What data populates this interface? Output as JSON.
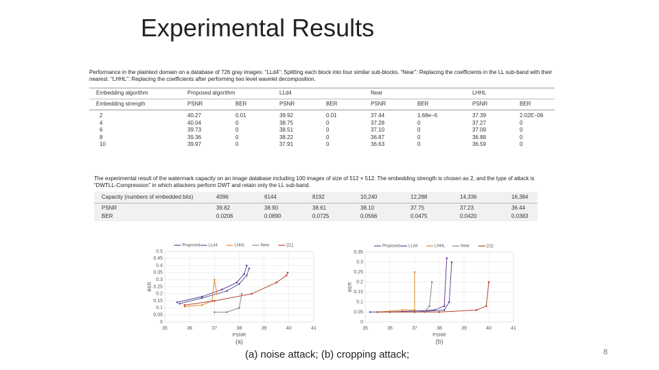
{
  "slide": {
    "title": "Experimental Results"
  },
  "table1": {
    "caption": "Performance in the plaintext domain on a database of 726 gray images: “LLd4”: Splitting each block into four similar sub-blocks. “Near”: Replacing the coefficients in the LL sub-band with their nearest. “LHHL”: Replacing the coefficients after performing two level wavelet decomposition.",
    "header": [
      "Embedding algorithm",
      "Proposed algorithm",
      "LLd4",
      "Near",
      "LHHL"
    ],
    "subheader": [
      "Embedding strength",
      "PSNR",
      "BER",
      "PSNR",
      "BER",
      "PSNR",
      "BER",
      "PSNR",
      "BER"
    ],
    "rows": [
      [
        "2",
        "40.27",
        "0.01",
        "39.92",
        "0.01",
        "37.44",
        "1.68e−6",
        "37.39",
        "2.02E−06"
      ],
      [
        "4",
        "40.04",
        "0",
        "38.75",
        "0",
        "37.28",
        "0",
        "37.27",
        "0"
      ],
      [
        "6",
        "39.73",
        "0",
        "38.51",
        "0",
        "37.10",
        "0",
        "37.09",
        "0"
      ],
      [
        "8",
        "39.36",
        "0",
        "38.22",
        "0",
        "36.87",
        "0",
        "36.88",
        "0"
      ],
      [
        "10",
        "39.97",
        "0",
        "37.91",
        "0",
        "36.63",
        "0",
        "36.59",
        "0"
      ]
    ]
  },
  "table2": {
    "caption": "The experimental result of the watermark capacity on an image database including 100 images of size of 512 × 512. The embedding strength is chosen as 2, and the type of attack is “DWTLL-Compression” in which attackers perform DWT and retain only the LL sub-band.",
    "header": [
      "Capacity (numbers of embedded bits)",
      "4096",
      "6144",
      "8192",
      "10,240",
      "12,288",
      "14,336",
      "16,384"
    ],
    "rows": [
      [
        "PSNR",
        "39.82",
        "38.90",
        "38.61",
        "38.10",
        "37.75",
        "37.23",
        "36.44"
      ],
      [
        "BER",
        "0.0206",
        "0.0890",
        "0.0725",
        "0.0566",
        "0.0475",
        "0.0420",
        "0.0383"
      ]
    ]
  },
  "chart_data": [
    {
      "type": "line",
      "x_label": "PSNR",
      "y_label": "BER",
      "sublabel": "(a)",
      "xlim": [
        35,
        41
      ],
      "xticks": [
        35,
        36,
        37,
        38,
        39,
        40,
        41
      ],
      "ylim": [
        0,
        0.5
      ],
      "yticks": [
        0,
        0.05,
        0.1,
        0.15,
        0.2,
        0.25,
        0.3,
        0.35,
        0.4,
        0.45,
        0.5
      ],
      "series": [
        {
          "name": "Proposed",
          "color": "#4a5a9a",
          "x": [
            35.6,
            36.5,
            37.5,
            38.0,
            38.3,
            38.4
          ],
          "values": [
            0.13,
            0.17,
            0.22,
            0.27,
            0.33,
            0.38
          ]
        },
        {
          "name": "LLd4",
          "color": "#6a3d9a",
          "x": [
            35.5,
            36.5,
            37.3,
            37.9,
            38.2,
            38.3
          ],
          "values": [
            0.14,
            0.18,
            0.23,
            0.28,
            0.34,
            0.4
          ]
        },
        {
          "name": "LHHL",
          "color": "#e08a2a",
          "x": [
            35.8,
            36.5,
            36.9,
            37.0,
            37.1
          ],
          "values": [
            0.11,
            0.12,
            0.15,
            0.3,
            0.2
          ]
        },
        {
          "name": "Near",
          "color": "#888888",
          "x": [
            37.0,
            37.5,
            38.0,
            38.1
          ],
          "values": [
            0.07,
            0.07,
            0.1,
            0.2
          ]
        },
        {
          "name": "[11]",
          "color": "#b5452f",
          "x": [
            35.8,
            37.0,
            38.5,
            39.5,
            39.9,
            39.95
          ],
          "values": [
            0.12,
            0.15,
            0.2,
            0.28,
            0.33,
            0.35
          ]
        }
      ]
    },
    {
      "type": "line",
      "x_label": "PSNR",
      "y_label": "BER",
      "sublabel": "(b)",
      "xlim": [
        35,
        41
      ],
      "xticks": [
        35,
        36,
        37,
        38,
        39,
        40,
        41
      ],
      "ylim": [
        0,
        0.35
      ],
      "yticks": [
        0,
        0.05,
        0.1,
        0.15,
        0.2,
        0.25,
        0.3,
        0.35
      ],
      "series": [
        {
          "name": "Proposed",
          "color": "#4a5a9a",
          "x": [
            35.2,
            37.0,
            38.2,
            38.4,
            38.5
          ],
          "values": [
            0.05,
            0.05,
            0.06,
            0.1,
            0.3
          ]
        },
        {
          "name": "LLd4",
          "color": "#6a3d9a",
          "x": [
            36.0,
            37.8,
            38.2,
            38.3
          ],
          "values": [
            0.05,
            0.06,
            0.08,
            0.32
          ]
        },
        {
          "name": "LHHL",
          "color": "#e08a2a",
          "x": [
            35.5,
            36.5,
            37.0,
            37.0
          ],
          "values": [
            0.05,
            0.06,
            0.06,
            0.25
          ]
        },
        {
          "name": "Near",
          "color": "#888888",
          "x": [
            37.4,
            37.6,
            37.7
          ],
          "values": [
            0.05,
            0.08,
            0.2
          ]
        },
        {
          "name": "[11]",
          "color": "#b5452f",
          "x": [
            35.5,
            38.0,
            39.5,
            39.9,
            40.0
          ],
          "values": [
            0.05,
            0.05,
            0.06,
            0.08,
            0.2
          ]
        }
      ]
    }
  ],
  "caption": "(a) noise attack; (b) cropping attack;",
  "page_number": "8"
}
